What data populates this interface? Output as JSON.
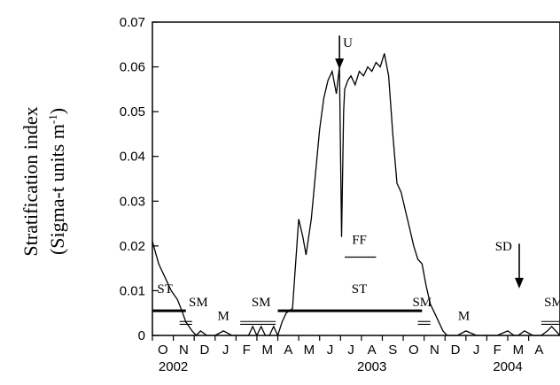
{
  "chart_data": {
    "type": "line",
    "title": "",
    "ylabel_line1": "Stratification index",
    "ylabel_line2_prefix": "(Sigma-t units m",
    "ylabel_line2_sup": "-1",
    "ylabel_line2_suffix": ")",
    "xlabel": "",
    "ylim": [
      0,
      0.07
    ],
    "yticks": [
      "0",
      "0.01",
      "0.02",
      "0.03",
      "0.04",
      "0.05",
      "0.06",
      "0.07"
    ],
    "ytick_values": [
      0,
      0.01,
      0.02,
      0.03,
      0.04,
      0.05,
      0.06,
      0.07
    ],
    "xlim_months": [
      0,
      19.5
    ],
    "x_unit": "months since 1 Oct 2002",
    "month_ticks": [
      "O",
      "N",
      "D",
      "J",
      "F",
      "M",
      "A",
      "M",
      "J",
      "J",
      "A",
      "S",
      "O",
      "N",
      "D",
      "J",
      "F",
      "M",
      "A"
    ],
    "year_labels": [
      {
        "label": "2002",
        "month": 1
      },
      {
        "label": "2003",
        "month": 10.5
      },
      {
        "label": "2004",
        "month": 17
      }
    ],
    "grid": false,
    "series": [
      {
        "x": [
          0,
          0.3,
          0.6,
          0.9,
          1.2,
          1.45,
          1.6,
          1.75,
          1.9,
          2.1,
          2.3,
          2.6,
          3.0,
          3.4,
          3.8,
          4.2,
          4.4,
          4.6,
          4.8,
          5.0,
          5.2,
          5.4,
          5.6,
          5.8,
          6.0,
          6.2,
          6.4,
          6.7,
          7.0,
          7.2,
          7.35,
          7.6,
          7.8,
          8.0,
          8.2,
          8.4,
          8.6,
          8.8,
          8.95,
          9.05,
          9.15,
          9.2,
          9.35,
          9.5,
          9.7,
          9.9,
          10.1,
          10.3,
          10.5,
          10.7,
          10.9,
          11.1,
          11.3,
          11.5,
          11.7,
          11.9,
          12.1,
          12.3,
          12.5,
          12.7,
          12.9,
          13.1,
          13.3,
          13.5,
          13.7,
          13.9,
          14.1,
          14.3,
          14.6,
          15.0,
          15.5,
          16.0,
          16.5,
          17.0,
          17.3,
          17.5,
          17.8,
          18.2,
          18.6,
          18.9,
          19.1,
          19.3,
          19.5
        ],
        "y": [
          0.021,
          0.016,
          0.013,
          0.01,
          0.008,
          0.005,
          0.003,
          0.002,
          0.001,
          0.0,
          0.001,
          0.0,
          0.0,
          0.001,
          0.0,
          0.0,
          0.0,
          0.0,
          0.002,
          0.0,
          0.002,
          0.0,
          0.0,
          0.002,
          0.0,
          0.003,
          0.005,
          0.006,
          0.026,
          0.022,
          0.018,
          0.026,
          0.036,
          0.046,
          0.053,
          0.057,
          0.059,
          0.054,
          0.06,
          0.022,
          0.05,
          0.055,
          0.057,
          0.058,
          0.056,
          0.059,
          0.058,
          0.06,
          0.059,
          0.061,
          0.06,
          0.063,
          0.058,
          0.045,
          0.034,
          0.032,
          0.028,
          0.024,
          0.02,
          0.017,
          0.016,
          0.011,
          0.007,
          0.005,
          0.003,
          0.001,
          0.0,
          0.0,
          0.0,
          0.001,
          0.0,
          0.0,
          0.0,
          0.001,
          0.0,
          0.0,
          0.001,
          0.0,
          0.0,
          0.001,
          0.002,
          0.001,
          0.0
        ]
      }
    ],
    "annotations": {
      "bars": [
        {
          "label": "ST",
          "x_start": 0,
          "x_end": 1.6,
          "y": 0.0055
        },
        {
          "label": "ST",
          "x_start": 6.0,
          "x_end": 12.9,
          "y": 0.0055
        },
        {
          "label": "FF",
          "x_start": 9.2,
          "x_end": 10.7,
          "y": 0.0175
        }
      ],
      "double_bars": [
        {
          "label": "SM",
          "x_start": 1.3,
          "x_end": 1.9,
          "y": 0.0028
        },
        {
          "label": "SM",
          "x_start": 4.2,
          "x_end": 5.9,
          "y": 0.0028
        },
        {
          "label": "SM",
          "x_start": 12.7,
          "x_end": 13.3,
          "y": 0.0028
        },
        {
          "label": "SM",
          "x_start": 18.6,
          "x_end": 19.5,
          "y": 0.0028
        }
      ],
      "texts": [
        {
          "label": "ST",
          "x": 0.6,
          "y": 0.0095
        },
        {
          "label": "SM",
          "x": 2.2,
          "y": 0.0065
        },
        {
          "label": "M",
          "x": 3.4,
          "y": 0.0035
        },
        {
          "label": "SM",
          "x": 5.2,
          "y": 0.0065
        },
        {
          "label": "FF",
          "x": 9.9,
          "y": 0.0205
        },
        {
          "label": "ST",
          "x": 9.9,
          "y": 0.0095
        },
        {
          "label": "SM",
          "x": 12.9,
          "y": 0.0065
        },
        {
          "label": "M",
          "x": 14.9,
          "y": 0.0035
        },
        {
          "label": "SM",
          "x": 19.2,
          "y": 0.0065
        },
        {
          "label": "U",
          "x": 9.35,
          "y": 0.0645
        },
        {
          "label": "SD",
          "x": 16.8,
          "y": 0.019
        }
      ],
      "arrows": [
        {
          "label": "U",
          "x": 8.95,
          "y_from": 0.067,
          "y_to": 0.0595
        },
        {
          "label": "SD",
          "x": 17.55,
          "y_from": 0.0205,
          "y_to": 0.0105
        }
      ]
    }
  }
}
